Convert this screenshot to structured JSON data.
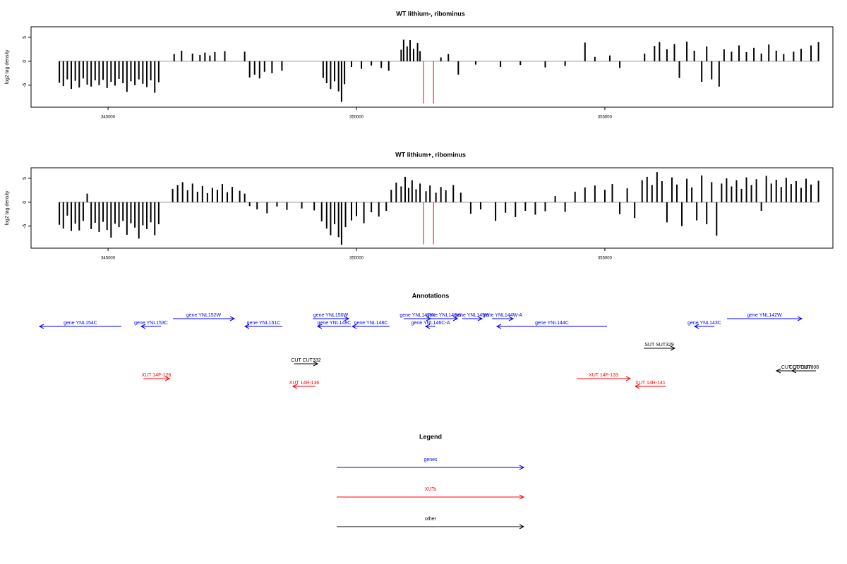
{
  "chart_data": [
    {
      "type": "bar",
      "title": "WT lithium-, ribominus",
      "y_label": "log2 tag density",
      "color": "#000000",
      "highlight_color": "#ff0000",
      "xlim": [
        343450,
        359590
      ],
      "ylim": [
        -9.6,
        7.2
      ],
      "xticks": [
        345000,
        350000,
        355000
      ],
      "yticks": [
        -5,
        0,
        5
      ],
      "x": [
        344020,
        344100,
        344180,
        344260,
        344340,
        344420,
        344500,
        344580,
        344660,
        344740,
        344820,
        344900,
        344980,
        345060,
        345140,
        345220,
        345300,
        345380,
        345460,
        345540,
        345620,
        345700,
        345780,
        345860,
        345940,
        346020,
        346330,
        346480,
        346700,
        346850,
        346950,
        347050,
        347150,
        347350,
        347750,
        347850,
        347950,
        348050,
        348150,
        348300,
        348500,
        349330,
        349400,
        349480,
        349560,
        349640,
        349700,
        349760,
        349900,
        350100,
        350300,
        350500,
        350650,
        350900,
        350950,
        351020,
        351080,
        351150,
        351230,
        351280,
        351700,
        351850,
        352050,
        352400,
        352900,
        353300,
        353800,
        354200,
        354600,
        354800,
        355100,
        355300,
        355800,
        356000,
        356100,
        356250,
        356400,
        356500,
        356650,
        356800,
        356950,
        357050,
        357150,
        357300,
        357400,
        357550,
        357700,
        357850,
        358000,
        358150,
        358300,
        358450,
        358600,
        358800,
        358950,
        359150,
        359300
      ],
      "values": [
        -4.5,
        -5.2,
        -3.8,
        -5.8,
        -4.1,
        -5.5,
        -3.6,
        -4.9,
        -5.3,
        -4.0,
        -5.0,
        -3.9,
        -5.6,
        -4.3,
        -5.1,
        -3.7,
        -4.6,
        -6.4,
        -4.2,
        -5.0,
        -3.8,
        -4.7,
        -5.4,
        -4.0,
        -6.6,
        -4.4,
        1.5,
        2.2,
        1.6,
        1.3,
        1.8,
        1.2,
        1.9,
        2.1,
        2.0,
        -3.4,
        -2.8,
        -3.6,
        -2.2,
        -2.5,
        -2.0,
        -3.5,
        -4.6,
        -5.8,
        -4.2,
        -6.3,
        -8.5,
        -4.8,
        -1.2,
        -1.6,
        -0.9,
        -1.4,
        -2.0,
        2.4,
        4.5,
        3.1,
        4.4,
        2.6,
        3.8,
        2.1,
        0.8,
        1.5,
        -2.8,
        -0.7,
        -1.2,
        -0.8,
        -1.3,
        -1.0,
        3.9,
        0.9,
        1.2,
        -1.4,
        1.6,
        3.2,
        4.0,
        2.5,
        3.6,
        -3.5,
        4.1,
        2.2,
        -4.3,
        3.1,
        -3.8,
        -5.3,
        2.5,
        2.0,
        3.3,
        1.9,
        2.8,
        1.6,
        3.5,
        2.2,
        1.5,
        2.0,
        2.6,
        3.3,
        4.0
      ],
      "highlight_x": [
        351350,
        351550
      ],
      "highlight_values": [
        -8.8,
        -8.8
      ]
    },
    {
      "type": "bar",
      "title": "WT lithium+, ribominus",
      "y_label": "log2 tag density",
      "color": "#000000",
      "highlight_color": "#ff0000",
      "xlim": [
        343450,
        359590
      ],
      "ylim": [
        -9.6,
        7.2
      ],
      "xticks": [
        345000,
        350000,
        355000
      ],
      "yticks": [
        -5,
        0,
        5
      ],
      "x": [
        344020,
        344100,
        344180,
        344260,
        344340,
        344420,
        344500,
        344580,
        344660,
        344740,
        344820,
        344900,
        344980,
        345060,
        345140,
        345220,
        345300,
        345380,
        345460,
        345540,
        345620,
        345700,
        345780,
        345860,
        345940,
        346020,
        346300,
        346400,
        346500,
        346600,
        346700,
        346800,
        346900,
        347000,
        347100,
        347200,
        347300,
        347400,
        347500,
        347650,
        347750,
        347850,
        348000,
        348200,
        348400,
        348600,
        348900,
        349150,
        349300,
        349400,
        349480,
        349560,
        349640,
        349700,
        349780,
        349900,
        350000,
        350150,
        350300,
        350450,
        350600,
        350700,
        350800,
        350900,
        350980,
        351050,
        351120,
        351200,
        351280,
        351400,
        351480,
        351600,
        351700,
        351800,
        351950,
        352100,
        352300,
        352500,
        352800,
        353000,
        353200,
        353400,
        353600,
        353800,
        354000,
        354200,
        354400,
        354600,
        354800,
        355000,
        355150,
        355300,
        355450,
        355600,
        355750,
        355850,
        355950,
        356050,
        356150,
        356250,
        356350,
        356450,
        356550,
        356650,
        356750,
        356850,
        356950,
        357050,
        357150,
        357250,
        357350,
        357450,
        357550,
        357650,
        357750,
        357850,
        357950,
        358050,
        358150,
        358250,
        358350,
        358450,
        358550,
        358650,
        358750,
        358850,
        358950,
        359050,
        359150,
        359300
      ],
      "values": [
        -4.7,
        -5.5,
        -2.8,
        -6.0,
        -4.5,
        -5.9,
        -3.9,
        1.8,
        -5.6,
        -4.3,
        -6.2,
        -4.1,
        -5.8,
        -7.4,
        -4.5,
        -5.2,
        -3.9,
        -6.8,
        -4.4,
        -5.3,
        -7.6,
        -4.8,
        -5.6,
        -4.2,
        -6.9,
        -4.6,
        2.8,
        3.6,
        4.2,
        2.5,
        3.9,
        2.2,
        3.4,
        1.9,
        3.0,
        2.6,
        3.8,
        2.1,
        3.2,
        2.4,
        1.8,
        -0.8,
        -1.5,
        -2.3,
        -0.9,
        -1.6,
        -1.3,
        -1.7,
        -4.0,
        -5.5,
        -6.9,
        -4.6,
        -7.3,
        -8.9,
        -5.2,
        -3.8,
        -2.9,
        -4.4,
        -2.1,
        -3.0,
        -1.8,
        2.6,
        4.1,
        3.3,
        5.3,
        3.0,
        4.6,
        2.7,
        3.9,
        2.3,
        3.5,
        2.0,
        3.2,
        2.5,
        3.6,
        2.0,
        -2.4,
        -1.5,
        -3.9,
        -2.2,
        -3.1,
        -1.8,
        -2.6,
        -1.9,
        1.3,
        -2.0,
        2.2,
        3.1,
        3.5,
        2.6,
        3.8,
        -2.5,
        2.9,
        -3.3,
        4.6,
        5.3,
        3.6,
        6.3,
        4.4,
        -4.2,
        5.2,
        3.7,
        -5.0,
        4.9,
        3.1,
        -3.8,
        5.6,
        -4.6,
        4.2,
        -7.0,
        3.9,
        5.0,
        3.3,
        4.6,
        2.8,
        5.2,
        3.6,
        4.8,
        -1.8,
        5.5,
        3.9,
        4.7,
        3.2,
        5.1,
        3.8,
        4.4,
        3.0,
        4.9,
        3.7,
        4.5
      ],
      "highlight_x": [
        351350,
        351550
      ],
      "highlight_values": [
        -8.8,
        -8.8
      ]
    }
  ],
  "annotations": {
    "title": "Annotations",
    "features": [
      {
        "label": "gene YNL154C",
        "color": "#0000ff"
      },
      {
        "label": "gene YNL153C",
        "color": "#0000ff"
      },
      {
        "label": "gene YNL152W",
        "color": "#0000ff"
      },
      {
        "label": "gene YNL151C",
        "color": "#0000ff"
      },
      {
        "label": "gene YNL150W",
        "color": "#0000ff"
      },
      {
        "label": "gene YNL149C",
        "color": "#0000ff"
      },
      {
        "label": "gene YNL148C",
        "color": "#0000ff"
      },
      {
        "label": "gene YNL147W",
        "color": "#0000ff"
      },
      {
        "label": "gene YNL146W",
        "color": "#0000ff"
      },
      {
        "label": "gene YNL146C-A",
        "color": "#0000ff"
      },
      {
        "label": "gene YNL145W",
        "color": "#0000ff"
      },
      {
        "label": "gene YNL144W-A",
        "color": "#0000ff"
      },
      {
        "label": "gene YNL144C",
        "color": "#0000ff"
      },
      {
        "label": "gene YNL143C",
        "color": "#0000ff"
      },
      {
        "label": "gene YNL142W",
        "color": "#0000ff"
      },
      {
        "label": "SUT SUT329",
        "color": "#000000"
      },
      {
        "label": "CUT CUT332",
        "color": "#000000"
      },
      {
        "label": "CUT CUT807",
        "color": "#000000"
      },
      {
        "label": "CUT CUT808",
        "color": "#000000"
      },
      {
        "label": "XUT 14F-126",
        "color": "#ff0000"
      },
      {
        "label": "XUT 14R-136",
        "color": "#ff0000"
      },
      {
        "label": "XUT 14F-133",
        "color": "#ff0000"
      },
      {
        "label": "XUT 14R-141",
        "color": "#ff0000"
      }
    ]
  },
  "legend": {
    "title": "Legend",
    "items": [
      {
        "label": "genes",
        "color": "#0000ff"
      },
      {
        "label": "XUTs",
        "color": "#ff0000"
      },
      {
        "label": "other",
        "color": "#000000"
      }
    ]
  }
}
